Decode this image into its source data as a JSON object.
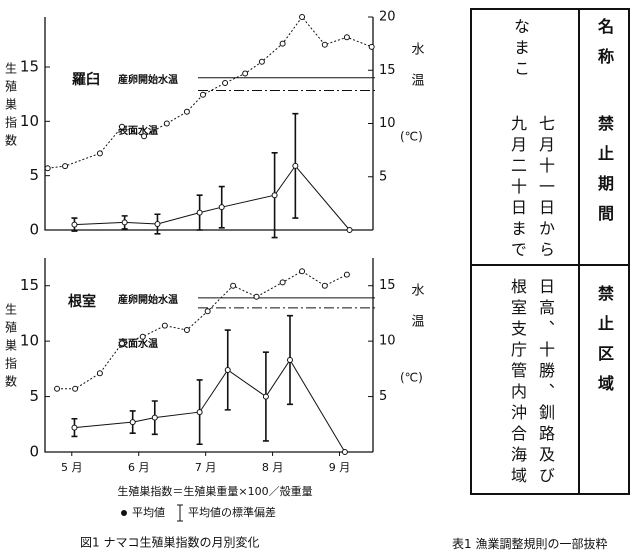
{
  "chart_data": [
    {
      "type": "line",
      "location": "羅臼",
      "ylabel": "生殖巣指数",
      "y2label": "水温",
      "y2unit": "(℃)",
      "xlim": [
        4.6,
        9.5
      ],
      "ylim": [
        0,
        19.6
      ],
      "yticks": [
        0,
        5,
        10,
        15
      ],
      "y2lim": [
        0,
        20
      ],
      "y2ticks": [
        5,
        10,
        15,
        20
      ],
      "series": [
        {
          "x": [
            5.04,
            5.79,
            6.28,
            6.91,
            7.24,
            8.03,
            8.34,
            9.15
          ],
          "values": [
            0.5,
            0.7,
            0.55,
            1.6,
            2.1,
            3.2,
            5.9,
            0
          ],
          "errors": [
            0.6,
            0.6,
            0.9,
            1.6,
            1.9,
            3.9,
            4.8,
            0
          ],
          "color": "#111111"
        },
        {
          "name": "表面水温",
          "axis": "y2",
          "x": [
            4.64,
            4.9,
            5.42,
            5.75,
            6.08,
            6.42,
            6.72,
            6.96,
            7.29,
            7.59,
            7.84,
            8.15,
            8.44,
            8.78,
            9.11,
            9.48
          ],
          "values": [
            5.8,
            6.0,
            7.2,
            9.7,
            8.8,
            10.0,
            11.1,
            12.7,
            13.8,
            14.7,
            15.8,
            17.5,
            20.0,
            17.4,
            18.1,
            17.2
          ],
          "color": "#111111"
        }
      ],
      "reference_lines": {
        "label": "産卵開始水温",
        "axis": "y2",
        "values": [
          14.3,
          13.1
        ]
      }
    },
    {
      "type": "line",
      "location": "根室",
      "ylabel": "生殖巣指数",
      "y2label": "水温",
      "y2unit": "(℃)",
      "xlim": [
        4.6,
        9.5
      ],
      "xticks": [
        {
          "value": 5,
          "label": "5 月"
        },
        {
          "value": 6,
          "label": "6 月"
        },
        {
          "value": 7,
          "label": "7 月"
        },
        {
          "value": 8,
          "label": "8 月"
        },
        {
          "value": 9,
          "label": "9 月"
        }
      ],
      "ylim": [
        0,
        17.5
      ],
      "yticks": [
        0,
        5,
        10,
        15
      ],
      "y2lim": [
        0,
        17.5
      ],
      "y2ticks": [
        5,
        10,
        15
      ],
      "series": [
        {
          "x": [
            5.04,
            5.91,
            6.24,
            6.91,
            7.33,
            7.9,
            8.26,
            9.08
          ],
          "values": [
            2.2,
            2.7,
            3.1,
            3.6,
            7.4,
            5.0,
            8.3,
            0
          ],
          "errors": [
            0.8,
            1.0,
            1.5,
            2.9,
            3.6,
            4.0,
            4.0,
            0
          ],
          "color": "#111111"
        },
        {
          "name": "表面水温",
          "axis": "y2",
          "x": [
            4.78,
            5.05,
            5.42,
            5.75,
            6.06,
            6.39,
            6.72,
            7.03,
            7.41,
            7.76,
            8.15,
            8.44,
            8.78,
            9.11
          ],
          "values": [
            5.7,
            5.7,
            7.1,
            9.8,
            10.4,
            11.4,
            11.0,
            12.7,
            15.0,
            14.0,
            15.3,
            16.3,
            15.0,
            16.0
          ],
          "color": "#111111"
        }
      ],
      "reference_lines": {
        "label": "産卵開始水温",
        "axis": "y2",
        "values": [
          13.9,
          13.0
        ]
      }
    }
  ],
  "notes": {
    "formula": "生殖巣指数＝生殖巣重量×100／殻重量",
    "mean": "平均値",
    "sd": "平均値の標準偏差"
  },
  "figure_caption": "図1 ナマコ生殖巣指数の月別変化",
  "table": {
    "caption": "表1 漁業調整規則の一部抜粋",
    "rows": [
      {
        "label": "名称",
        "value": [
          "なまこ"
        ]
      },
      {
        "label": "禁止期間",
        "value": [
          "七月十一日から",
          "九月二十日まで"
        ]
      },
      {
        "label": "禁止区域",
        "value": [
          "日高、十勝、釧路及び",
          "根室支庁管内沖合海域"
        ]
      }
    ]
  }
}
